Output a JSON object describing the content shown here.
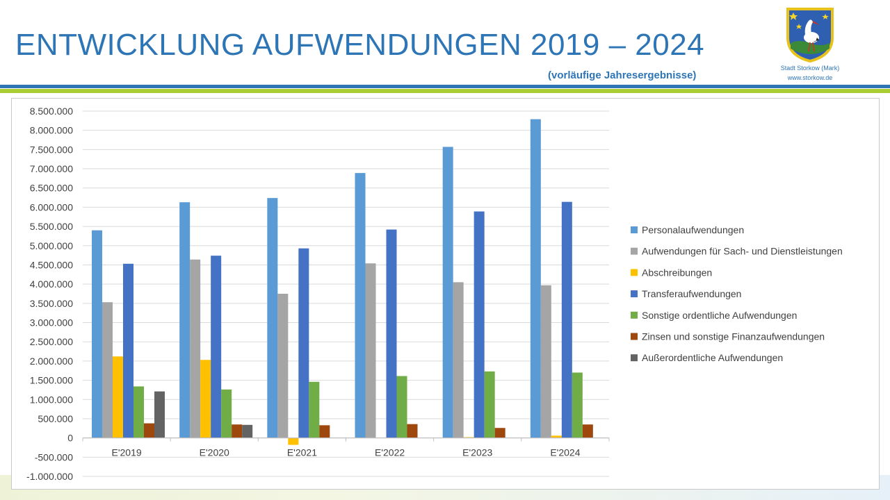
{
  "header": {
    "title": "ENTWICKLUNG AUFWENDUNGEN 2019 – 2024",
    "subtitle": "(vorläufige Jahresergebnisse)"
  },
  "logo": {
    "icon": "coat-of-arms-stork-icon",
    "line1": "Stadt Storkow (Mark)",
    "line2": "www.storkow.de"
  },
  "colors": {
    "title": "#2e75b6",
    "stripe_blue": "#2e75b6",
    "stripe_green": "#a9cd32"
  },
  "chart_data": {
    "type": "bar",
    "title": "",
    "xlabel": "",
    "ylabel": "",
    "categories": [
      "E'2019",
      "E'2020",
      "E'2021",
      "E'2022",
      "E'2023",
      "E'2024"
    ],
    "ylim": [
      -1000000,
      8500000
    ],
    "ytick_step": 500000,
    "ytick_labels": [
      "8.500.000",
      "8.000.000",
      "7.500.000",
      "7.000.000",
      "6.500.000",
      "6.000.000",
      "5.500.000",
      "5.000.000",
      "4.500.000",
      "4.000.000",
      "3.500.000",
      "3.000.000",
      "2.500.000",
      "2.000.000",
      "1.500.000",
      "1.000.000",
      "500.000",
      "0",
      "-500.000",
      "-1.000.000"
    ],
    "grid": true,
    "legend_position": "right",
    "series": [
      {
        "name": "Personalaufwendungen",
        "color": "#5b9bd5",
        "values": [
          5400000,
          6130000,
          6240000,
          6890000,
          7570000,
          8290000
        ]
      },
      {
        "name": "Aufwendungen für Sach- und Dienstleistungen",
        "color": "#a5a5a5",
        "values": [
          3530000,
          4640000,
          3750000,
          4540000,
          4050000,
          3970000
        ]
      },
      {
        "name": "Abschreibungen",
        "color": "#ffc000",
        "values": [
          2120000,
          2030000,
          -180000,
          0,
          20000,
          60000
        ]
      },
      {
        "name": "Transferaufwendungen",
        "color": "#4472c4",
        "values": [
          4530000,
          4740000,
          4930000,
          5420000,
          5890000,
          6140000
        ]
      },
      {
        "name": "Sonstige ordentliche Aufwendungen",
        "color": "#70ad47",
        "values": [
          1340000,
          1260000,
          1460000,
          1610000,
          1730000,
          1700000
        ]
      },
      {
        "name": "Zinsen und sonstige Finanzaufwendungen",
        "color": "#9e480e",
        "values": [
          380000,
          350000,
          330000,
          360000,
          260000,
          350000
        ]
      },
      {
        "name": "Außerordentliche Aufwendungen",
        "color": "#636363",
        "values": [
          1210000,
          340000,
          0,
          0,
          0,
          0
        ]
      }
    ]
  }
}
